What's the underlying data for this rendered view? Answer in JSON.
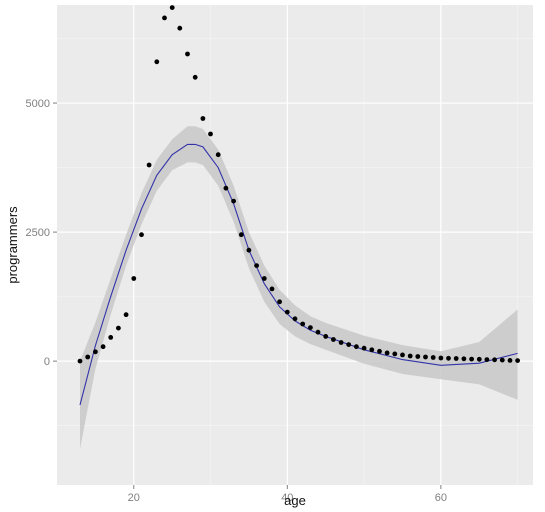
{
  "chart_data": {
    "type": "scatter",
    "title": "",
    "xlabel": "age",
    "ylabel": "programmers",
    "xlim": [
      10,
      72
    ],
    "ylim": [
      -2400,
      6900
    ],
    "x_ticks": [
      20,
      40,
      60
    ],
    "x_tick_labels": [
      "20",
      "40",
      "60"
    ],
    "y_ticks": [
      0,
      2500,
      5000
    ],
    "y_tick_labels": [
      "0",
      "2500",
      "5000"
    ],
    "grid": true,
    "colors": {
      "panel_background": "#ebebeb",
      "grid_major": "#ffffff",
      "grid_minor": "#f5f5f5",
      "points": "#000000",
      "smooth_line": "#3333aa",
      "confidence_band": "#c8c8c8"
    },
    "series": [
      {
        "type": "scatter",
        "x": [
          13,
          14,
          15,
          16,
          17,
          18,
          19,
          20,
          21,
          22,
          23,
          24,
          25,
          26,
          27,
          28,
          29,
          30,
          31,
          32,
          33,
          34,
          35,
          36,
          37,
          38,
          39,
          40,
          41,
          42,
          43,
          44,
          45,
          46,
          47,
          48,
          49,
          50,
          51,
          52,
          53,
          54,
          55,
          56,
          57,
          58,
          59,
          60,
          61,
          62,
          63,
          64,
          65,
          66,
          67,
          68,
          69,
          70
        ],
        "y": [
          0,
          80,
          180,
          280,
          460,
          640,
          900,
          1600,
          2450,
          3800,
          5800,
          6650,
          6850,
          6450,
          5950,
          5500,
          4700,
          4400,
          4000,
          3350,
          3100,
          2450,
          2150,
          1850,
          1600,
          1400,
          1150,
          950,
          820,
          720,
          650,
          560,
          480,
          420,
          360,
          320,
          280,
          250,
          220,
          190,
          160,
          140,
          120,
          100,
          90,
          80,
          70,
          60,
          55,
          50,
          45,
          40,
          35,
          30,
          25,
          20,
          15,
          10
        ]
      },
      {
        "type": "smooth-line",
        "x": [
          13,
          15,
          17,
          19,
          21,
          23,
          25,
          27,
          28,
          29,
          31,
          33,
          35,
          37,
          39,
          41,
          43,
          45,
          50,
          55,
          60,
          65,
          70
        ],
        "y": [
          -850,
          300,
          1250,
          2150,
          2950,
          3600,
          4000,
          4200,
          4200,
          4150,
          3750,
          3050,
          2150,
          1500,
          1050,
          780,
          600,
          480,
          220,
          30,
          -80,
          -40,
          150
        ],
        "ci_lower": [
          -1700,
          -150,
          900,
          1850,
          2650,
          3300,
          3700,
          3850,
          3850,
          3800,
          3400,
          2700,
          1800,
          1150,
          720,
          480,
          330,
          220,
          -50,
          -250,
          -350,
          -450,
          -750
        ],
        "ci_upper": [
          0,
          750,
          1600,
          2450,
          3250,
          3900,
          4300,
          4550,
          4550,
          4500,
          4100,
          3400,
          2500,
          1850,
          1380,
          1080,
          870,
          740,
          490,
          310,
          190,
          370,
          1000
        ]
      }
    ]
  }
}
